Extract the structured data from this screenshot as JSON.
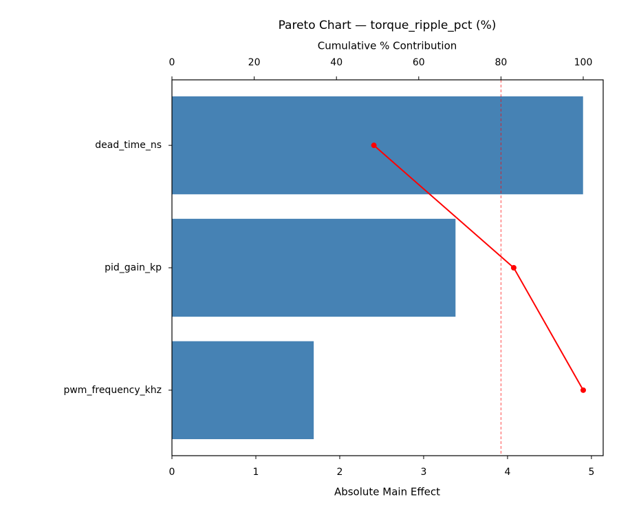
{
  "chart_data": {
    "type": "pareto",
    "title": "Pareto Chart — torque_ripple_pct (%)",
    "xlabel": "Absolute Main Effect",
    "x2label": "Cumulative % Contribution",
    "categories": [
      "dead_time_ns",
      "pid_gain_kp",
      "pwm_frequency_khz"
    ],
    "values": [
      4.9,
      3.38,
      1.69
    ],
    "color": "#4682b4",
    "cumulative": {
      "values": [
        49.1,
        83.1,
        100
      ],
      "color": "#ff0000"
    },
    "threshold": 80,
    "xlim": [
      0,
      5.14
    ],
    "xticks": [
      0,
      1,
      2,
      3,
      4,
      5
    ],
    "x2lim": [
      0,
      104.85
    ],
    "x2ticks": [
      0,
      20,
      40,
      60,
      80,
      100
    ]
  }
}
